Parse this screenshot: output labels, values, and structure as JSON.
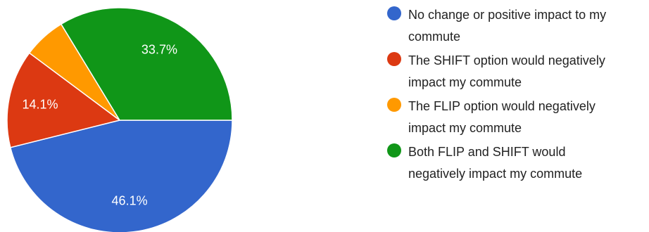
{
  "chart_data": {
    "type": "pie",
    "title": "",
    "slices": [
      {
        "label": "No change or positive impact to my commute",
        "display": "No change or positive impact to my\ncommute",
        "value": 46.1,
        "value_label": "46.1%",
        "color": "#3366cc"
      },
      {
        "label": "The SHIFT option would negatively impact my commute",
        "display": "The SHIFT option would negatively\nimpact my commute",
        "value": 14.1,
        "value_label": "14.1%",
        "color": "#dc3912"
      },
      {
        "label": "The FLIP option would negatively impact my commute",
        "display": "The FLIP option would negatively\nimpact my commute",
        "value": 6.1,
        "value_label": "",
        "color": "#ff9900"
      },
      {
        "label": "Both FLIP and SHIFT would negatively impact my commute",
        "display": "Both FLIP and SHIFT would\nnegatively impact my commute",
        "value": 33.7,
        "value_label": "33.7%",
        "color": "#109618"
      }
    ],
    "legend_position": "right"
  }
}
